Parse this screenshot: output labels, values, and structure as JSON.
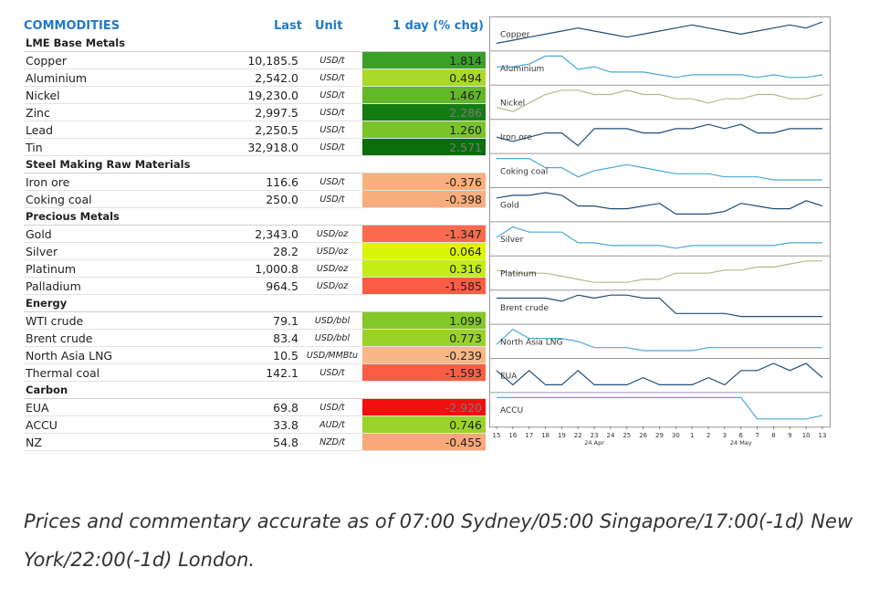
{
  "header": {
    "commodities": "COMMODITIES",
    "last": "Last",
    "unit": "Unit",
    "chg": "1 day (% chg)"
  },
  "groups": [
    {
      "name": "LME Base Metals",
      "items": [
        {
          "name": "Copper",
          "last": "10,185.5",
          "unit": "USD/t",
          "chg": "1.814",
          "color": "#3aa02a"
        },
        {
          "name": "Aluminium",
          "last": "2,542.0",
          "unit": "USD/t",
          "chg": "0.494",
          "color": "#a9d92b"
        },
        {
          "name": "Nickel",
          "last": "19,230.0",
          "unit": "USD/t",
          "chg": "1.467",
          "color": "#63b82a"
        },
        {
          "name": "Zinc",
          "last": "2,997.5",
          "unit": "USD/t",
          "chg": "2.286",
          "color": "#137d13"
        },
        {
          "name": "Lead",
          "last": "2,250.5",
          "unit": "USD/t",
          "chg": "1.260",
          "color": "#79c42a"
        },
        {
          "name": "Tin",
          "last": "32,918.0",
          "unit": "USD/t",
          "chg": "2.571",
          "color": "#0a6e0a"
        }
      ]
    },
    {
      "name": "Steel Making Raw Materials",
      "items": [
        {
          "name": "Iron ore",
          "last": "116.6",
          "unit": "USD/t",
          "chg": "-0.376",
          "color": "#f9b07e"
        },
        {
          "name": "Coking coal",
          "last": "250.0",
          "unit": "USD/t",
          "chg": "-0.398",
          "color": "#f9ad7c"
        }
      ]
    },
    {
      "name": "Precious Metals",
      "items": [
        {
          "name": "Gold",
          "last": "2,343.0",
          "unit": "USD/oz",
          "chg": "-1.347",
          "color": "#f96a4e"
        },
        {
          "name": "Silver",
          "last": "28.2",
          "unit": "USD/oz",
          "chg": "0.064",
          "color": "#d9f50a"
        },
        {
          "name": "Platinum",
          "last": "1,000.8",
          "unit": "USD/oz",
          "chg": "0.316",
          "color": "#c3ee15"
        },
        {
          "name": "Palladium",
          "last": "964.5",
          "unit": "USD/oz",
          "chg": "-1.585",
          "color": "#f95e45"
        }
      ]
    },
    {
      "name": "Energy",
      "items": [
        {
          "name": "WTI crude",
          "last": "79.1",
          "unit": "USD/bbl",
          "chg": "1.099",
          "color": "#84c82a"
        },
        {
          "name": "Brent crude",
          "last": "83.4",
          "unit": "USD/bbl",
          "chg": "0.773",
          "color": "#9bd22a"
        },
        {
          "name": "North Asia LNG",
          "last": "10.5",
          "unit": "USD/MMBtu",
          "chg": "-0.239",
          "color": "#f9b788"
        },
        {
          "name": "Thermal coal",
          "last": "142.1",
          "unit": "USD/t",
          "chg": "-1.593",
          "color": "#f95e45"
        }
      ]
    },
    {
      "name": "Carbon",
      "items": [
        {
          "name": "EUA",
          "last": "69.8",
          "unit": "USD/t",
          "chg": "-2.920",
          "color": "#f40f0f"
        },
        {
          "name": "ACCU",
          "last": "33.8",
          "unit": "AUD/t",
          "chg": "0.746",
          "color": "#9cd22a"
        },
        {
          "name": "NZ",
          "last": "54.8",
          "unit": "NZD/t",
          "chg": "-0.455",
          "color": "#f9a877"
        }
      ]
    }
  ],
  "chart_data": {
    "type": "line",
    "x_ticks": [
      "15",
      "16",
      "17",
      "18",
      "19",
      "22",
      "23",
      "24",
      "25",
      "26",
      "29",
      "30",
      "1",
      "2",
      "3",
      "6",
      "7",
      "8",
      "9",
      "10",
      "13"
    ],
    "x_group_labels": [
      "24 Apr",
      "24 May"
    ],
    "series": [
      {
        "name": "Copper",
        "color": "#1f4e79",
        "values": [
          3,
          4,
          5,
          6,
          7,
          8,
          7,
          6,
          5,
          6,
          7,
          8,
          9,
          8,
          7,
          6,
          7,
          8,
          9,
          8,
          10
        ]
      },
      {
        "name": "Aluminium",
        "color": "#4aa9d9",
        "values": [
          5,
          5,
          6,
          9,
          9,
          4,
          5,
          3,
          3,
          3,
          2,
          1,
          2,
          2,
          2,
          2,
          1,
          2,
          1,
          1,
          2
        ]
      },
      {
        "name": "Nickel",
        "color": "#b8b88a",
        "values": [
          2,
          1,
          3,
          5,
          6,
          6,
          5,
          5,
          6,
          5,
          5,
          4,
          4,
          3,
          4,
          4,
          5,
          5,
          4,
          4,
          5
        ]
      },
      {
        "name": "Iron ore",
        "color": "#1f4e79",
        "values": [
          5,
          4,
          5,
          6,
          6,
          3,
          7,
          7,
          7,
          6,
          6,
          7,
          7,
          8,
          7,
          8,
          6,
          6,
          7,
          7,
          7
        ]
      },
      {
        "name": "Coking coal",
        "color": "#4aa9d9",
        "values": [
          9,
          9,
          9,
          6,
          6,
          3,
          5,
          6,
          7,
          6,
          5,
          4,
          4,
          4,
          3,
          3,
          3,
          2,
          2,
          2,
          2
        ]
      },
      {
        "name": "Gold",
        "color": "#1f4e79",
        "values": [
          7,
          8,
          8,
          9,
          8,
          4,
          4,
          3,
          3,
          4,
          5,
          1,
          1,
          1,
          2,
          5,
          4,
          3,
          3,
          6,
          4
        ]
      },
      {
        "name": "Silver",
        "color": "#4aa9d9",
        "values": [
          5,
          9,
          7,
          7,
          7,
          3,
          3,
          2,
          2,
          2,
          2,
          1,
          2,
          2,
          2,
          2,
          2,
          2,
          3,
          3,
          3
        ]
      },
      {
        "name": "Platinum",
        "color": "#b8b88a",
        "values": [
          5,
          4,
          4,
          4,
          3,
          2,
          1,
          1,
          1,
          2,
          2,
          4,
          4,
          4,
          5,
          5,
          6,
          6,
          7,
          8,
          8
        ]
      },
      {
        "name": "Brent crude",
        "color": "#1f4e79",
        "values": [
          8,
          8,
          8,
          8,
          7,
          9,
          8,
          9,
          9,
          8,
          8,
          3,
          3,
          3,
          3,
          2,
          2,
          2,
          2,
          2,
          2
        ]
      },
      {
        "name": "North Asia LNG",
        "color": "#4aa9d9",
        "values": [
          3,
          8,
          5,
          5,
          5,
          4,
          2,
          2,
          2,
          1,
          1,
          1,
          1,
          2,
          2,
          2,
          2,
          2,
          2,
          2,
          2
        ]
      },
      {
        "name": "EUA",
        "color": "#1f4e79",
        "values": [
          5,
          3,
          5,
          3,
          3,
          5,
          3,
          3,
          3,
          4,
          3,
          3,
          3,
          4,
          3,
          5,
          5,
          6,
          5,
          6,
          4
        ]
      },
      {
        "name": "ACCU",
        "color": "#4aa9d9",
        "values": [
          8,
          8,
          8,
          8,
          8,
          8,
          8,
          8,
          8,
          8,
          8,
          8,
          8,
          8,
          8,
          8,
          2,
          2,
          2,
          2,
          3
        ]
      }
    ]
  },
  "footnote": "Prices and commentary accurate as of 07:00 Sydney/05:00 Singapore/17:00(-1d) New York/22:00(-1d) London."
}
